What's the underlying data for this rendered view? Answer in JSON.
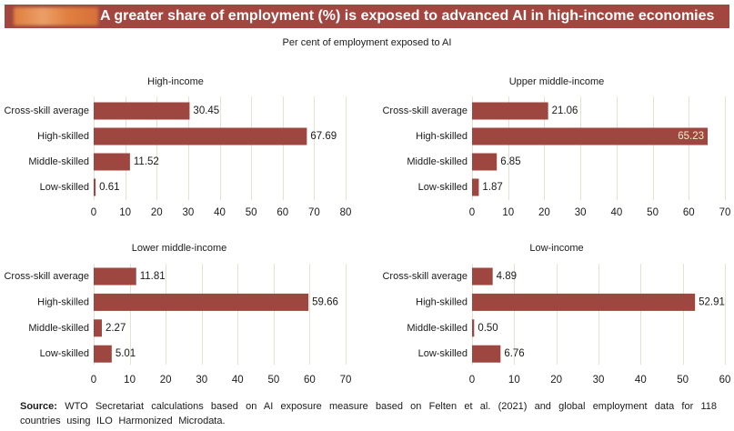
{
  "header": {
    "title": "A greater share of employment (%) is exposed to advanced AI in high-income economies"
  },
  "figure": {
    "subtitle": "Per cent of employment exposed to AI"
  },
  "colors": {
    "title_bar": "#a2463f",
    "title_text": "#ffffff",
    "label_block": "#e3823f",
    "bar": "#9d4740",
    "grid": "#e7e1cd",
    "value_label": "#1a1a1a",
    "inside_value_label": "#f8eec8"
  },
  "chart_data": [
    {
      "type": "bar",
      "orientation": "horizontal",
      "title": "High-income",
      "categories": [
        "Cross-skill average",
        "High-skilled",
        "Middle-skilled",
        "Low-skilled"
      ],
      "values": [
        30.45,
        67.69,
        11.52,
        0.61
      ],
      "xlim": [
        0,
        80
      ],
      "xticks": [
        0,
        10,
        20,
        30,
        40,
        50,
        60,
        70,
        80
      ],
      "grid": true
    },
    {
      "type": "bar",
      "orientation": "horizontal",
      "title": "Upper middle-income",
      "categories": [
        "Cross-skill average",
        "High-skilled",
        "Middle-skilled",
        "Low-skilled"
      ],
      "values": [
        21.06,
        65.23,
        6.85,
        1.87
      ],
      "xlim": [
        0,
        70
      ],
      "xticks": [
        0,
        10,
        20,
        30,
        40,
        50,
        60,
        70
      ],
      "grid": true
    },
    {
      "type": "bar",
      "orientation": "horizontal",
      "title": "Lower middle-income",
      "categories": [
        "Cross-skill average",
        "High-skilled",
        "Middle-skilled",
        "Low-skilled"
      ],
      "values": [
        11.81,
        59.66,
        2.27,
        5.01
      ],
      "xlim": [
        0,
        70
      ],
      "xticks": [
        0,
        10,
        20,
        30,
        40,
        50,
        60,
        70
      ],
      "grid": true
    },
    {
      "type": "bar",
      "orientation": "horizontal",
      "title": "Low-income",
      "categories": [
        "Cross-skill average",
        "High-skilled",
        "Middle-skilled",
        "Low-skilled"
      ],
      "values": [
        4.89,
        52.91,
        0.5,
        6.76
      ],
      "xlim": [
        0,
        60
      ],
      "xticks": [
        0,
        10,
        20,
        30,
        40,
        50,
        60
      ],
      "grid": true
    }
  ],
  "source": {
    "label": "Source:",
    "text": "WTO Secretariat calculations based on AI exposure measure based on Felten et al. (2021) and global employment data for 118 countries using ILO Harmonized Microdata."
  }
}
